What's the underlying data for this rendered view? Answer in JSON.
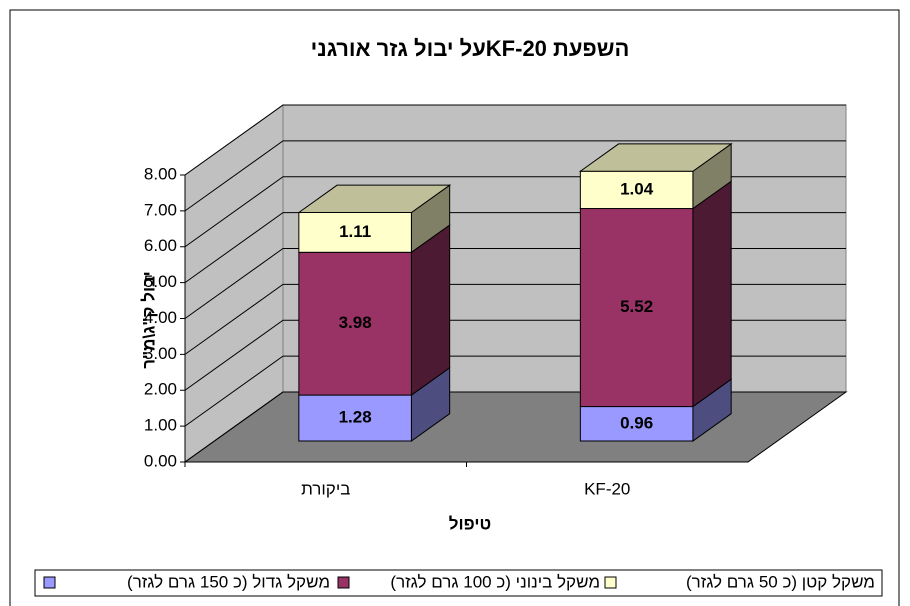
{
  "chart_data": {
    "type": "bar3d-stacked",
    "title": "השפעת KF-20על יבול גזר אורגני",
    "x_label": "טיפול",
    "y_label": "יבול ק\"ג\\מ\"ר",
    "categories": [
      "ביקורת",
      "KF-20"
    ],
    "series": [
      {
        "name": "משקל גדול (כ 150 גרם לגזר)",
        "color": "#9999ff",
        "values": [
          1.28,
          0.96
        ]
      },
      {
        "name": "משקל בינוני (כ 100 גרם לגזר)",
        "color": "#993366",
        "values": [
          3.98,
          5.52
        ]
      },
      {
        "name": "משקל קטן (כ 50 גרם לגזר)",
        "color": "#ffffcc",
        "values": [
          1.11,
          1.04
        ]
      }
    ],
    "ylim": [
      0,
      8
    ],
    "yticks": [
      {
        "value": 0,
        "label": "0.00"
      },
      {
        "value": 1,
        "label": "1.00"
      },
      {
        "value": 2,
        "label": "2.00"
      },
      {
        "value": 3,
        "label": "3.00"
      },
      {
        "value": 4,
        "label": "4.00"
      },
      {
        "value": 5,
        "label": "5.00"
      },
      {
        "value": 6,
        "label": "6.00"
      },
      {
        "value": 7,
        "label": "7.00"
      },
      {
        "value": 8,
        "label": "8.00"
      }
    ],
    "grid": true,
    "legend": "bottom"
  }
}
